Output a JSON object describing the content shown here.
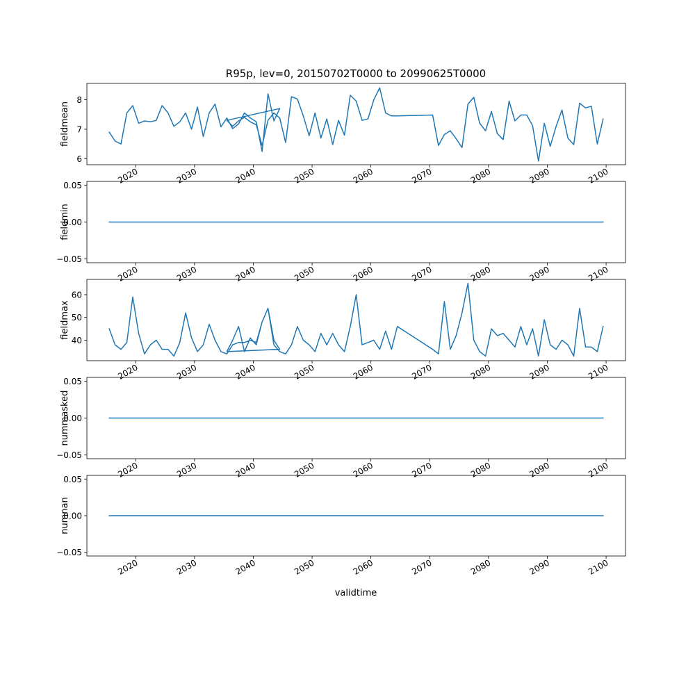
{
  "figure": {
    "title": "R95p, lev=0, 20150702T0000 to 20990625T0000",
    "xlabel": "validtime",
    "line_color": "#1f77b4"
  },
  "chart_data": [
    {
      "type": "line",
      "ylabel": "fieldmean",
      "xlim": [
        2011.7,
        2103.3
      ],
      "ylim": [
        5.8,
        8.55
      ],
      "xticks": [
        "2020",
        "2030",
        "2040",
        "2050",
        "2060",
        "2070",
        "2080",
        "2090",
        "2100"
      ],
      "yticks": [
        "6",
        "7",
        "8"
      ],
      "x": [
        2015.5,
        2016.5,
        2017.5,
        2018.5,
        2019.5,
        2020.5,
        2021.5,
        2022.5,
        2023.5,
        2024.5,
        2025.5,
        2026.5,
        2027.5,
        2028.5,
        2029.5,
        2030.5,
        2031.5,
        2032.5,
        2033.5,
        2034.5,
        2035.5,
        2036.5,
        2037.5,
        2038.5,
        2039.5,
        2040.5,
        2041.5,
        2042.5,
        2043.5,
        2044.5,
        2035.5,
        2036.5,
        2037.5,
        2038.5,
        2039.5,
        2040.5,
        2041.5,
        2042.5,
        2043.5,
        2044.5,
        2045.5,
        2046.5,
        2047.5,
        2048.5,
        2049.5,
        2050.5,
        2051.5,
        2052.5,
        2053.5,
        2054.5,
        2055.5,
        2056.5,
        2057.5,
        2058.5,
        2059.5,
        2060.5,
        2061.5,
        2062.5,
        2063.5,
        2064.5,
        2070.5,
        2071.5,
        2072.5,
        2073.5,
        2074.5,
        2075.5,
        2076.5,
        2077.5,
        2078.5,
        2079.5,
        2080.5,
        2081.5,
        2082.5,
        2083.5,
        2084.5,
        2085.5,
        2086.5,
        2087.5,
        2088.5,
        2089.5,
        2090.5,
        2091.5,
        2092.5,
        2093.5,
        2094.5,
        2095.5,
        2096.5,
        2097.5,
        2098.5,
        2099.5
      ],
      "y": [
        6.9,
        6.6,
        6.5,
        7.55,
        7.8,
        7.2,
        7.28,
        7.25,
        7.3,
        7.8,
        7.55,
        7.1,
        7.25,
        7.55,
        7.0,
        7.75,
        6.75,
        7.55,
        7.85,
        7.08,
        7.38,
        7.02,
        7.18,
        7.55,
        7.38,
        7.25,
        6.25,
        8.2,
        7.28,
        7.7,
        7.3,
        7.1,
        7.28,
        7.4,
        7.25,
        7.15,
        6.45,
        7.3,
        7.55,
        7.38,
        6.55,
        8.1,
        8.02,
        7.45,
        6.78,
        7.55,
        6.7,
        7.35,
        6.48,
        7.3,
        6.8,
        8.15,
        7.95,
        7.3,
        7.35,
        8.0,
        8.4,
        7.55,
        7.45,
        7.45,
        7.48,
        6.45,
        6.82,
        6.95,
        6.68,
        6.38,
        7.85,
        8.08,
        7.2,
        6.95,
        7.6,
        6.85,
        6.65,
        7.95,
        7.28,
        7.48,
        7.48,
        7.12,
        5.92,
        7.2,
        6.42,
        7.1,
        7.65,
        6.7,
        6.48,
        7.88,
        7.72,
        7.78,
        6.5,
        7.35
      ]
    },
    {
      "type": "line",
      "ylabel": "fieldmin",
      "xlim": [
        2011.7,
        2103.3
      ],
      "ylim": [
        -0.055,
        0.055
      ],
      "xticks": [
        "2020",
        "2030",
        "2040",
        "2050",
        "2060",
        "2070",
        "2080",
        "2090",
        "2100"
      ],
      "yticks": [
        "0.05",
        "0.00",
        "−0.05"
      ],
      "x": [
        2015.5,
        2099.5
      ],
      "y": [
        0,
        0
      ]
    },
    {
      "type": "line",
      "ylabel": "fieldmax",
      "xlim": [
        2011.7,
        2103.3
      ],
      "ylim": [
        31,
        66.7
      ],
      "xticks": [
        "2020",
        "2030",
        "2040",
        "2050",
        "2060",
        "2070",
        "2080",
        "2090",
        "2100"
      ],
      "yticks": [
        "40",
        "50",
        "60"
      ],
      "x": [
        2015.5,
        2016.5,
        2017.5,
        2018.5,
        2019.5,
        2020.5,
        2021.5,
        2022.5,
        2023.5,
        2024.5,
        2025.5,
        2026.5,
        2027.5,
        2028.5,
        2029.5,
        2030.5,
        2031.5,
        2032.5,
        2033.5,
        2034.5,
        2035.5,
        2036.5,
        2037.5,
        2038.5,
        2039.5,
        2040.5,
        2041.5,
        2042.5,
        2043.5,
        2044.5,
        2035.5,
        2036.5,
        2037.5,
        2038.5,
        2039.5,
        2040.5,
        2041.5,
        2042.5,
        2043.5,
        2044.5,
        2045.5,
        2046.5,
        2047.5,
        2048.5,
        2049.5,
        2050.5,
        2051.5,
        2052.5,
        2053.5,
        2054.5,
        2055.5,
        2056.5,
        2057.5,
        2058.5,
        2059.5,
        2060.5,
        2061.5,
        2062.5,
        2063.5,
        2064.5,
        2070.5,
        2071.5,
        2072.5,
        2073.5,
        2074.5,
        2075.5,
        2076.5,
        2077.5,
        2078.5,
        2079.5,
        2080.5,
        2081.5,
        2082.5,
        2083.5,
        2084.5,
        2085.5,
        2086.5,
        2087.5,
        2088.5,
        2089.5,
        2090.5,
        2091.5,
        2092.5,
        2093.5,
        2094.5,
        2095.5,
        2096.5,
        2097.5,
        2098.5,
        2099.5
      ],
      "y": [
        45,
        38,
        36,
        39,
        59,
        43,
        34,
        38,
        40,
        36,
        36,
        33,
        39,
        52,
        41,
        35,
        38,
        47,
        40,
        35,
        34,
        38,
        39,
        39,
        40,
        39,
        48,
        54,
        40,
        36,
        35,
        40,
        46,
        35,
        41,
        38,
        48,
        54,
        38,
        35,
        34,
        38,
        46,
        40,
        38,
        35,
        43,
        38,
        43,
        38,
        35,
        46,
        60,
        38,
        39,
        40,
        36,
        44,
        36,
        46,
        36,
        34,
        57,
        36,
        42,
        52,
        65,
        40,
        35,
        33,
        45,
        42,
        43,
        40,
        37,
        46,
        38,
        45,
        33,
        49,
        38,
        36,
        40,
        38,
        33,
        54,
        37,
        37,
        35,
        46
      ]
    },
    {
      "type": "line",
      "ylabel": "nummasked",
      "xlim": [
        2011.7,
        2103.3
      ],
      "ylim": [
        -0.055,
        0.055
      ],
      "xticks": [
        "2020",
        "2030",
        "2040",
        "2050",
        "2060",
        "2070",
        "2080",
        "2090",
        "2100"
      ],
      "yticks": [
        "0.05",
        "0.00",
        "−0.05"
      ],
      "x": [
        2015.5,
        2099.5
      ],
      "y": [
        0,
        0
      ]
    },
    {
      "type": "line",
      "ylabel": "numnan",
      "xlim": [
        2011.7,
        2103.3
      ],
      "ylim": [
        -0.055,
        0.055
      ],
      "xticks": [
        "2020",
        "2030",
        "2040",
        "2050",
        "2060",
        "2070",
        "2080",
        "2090",
        "2100"
      ],
      "yticks": [
        "0.05",
        "0.00",
        "−0.05"
      ],
      "x": [
        2015.5,
        2099.5
      ],
      "y": [
        0,
        0
      ]
    }
  ]
}
